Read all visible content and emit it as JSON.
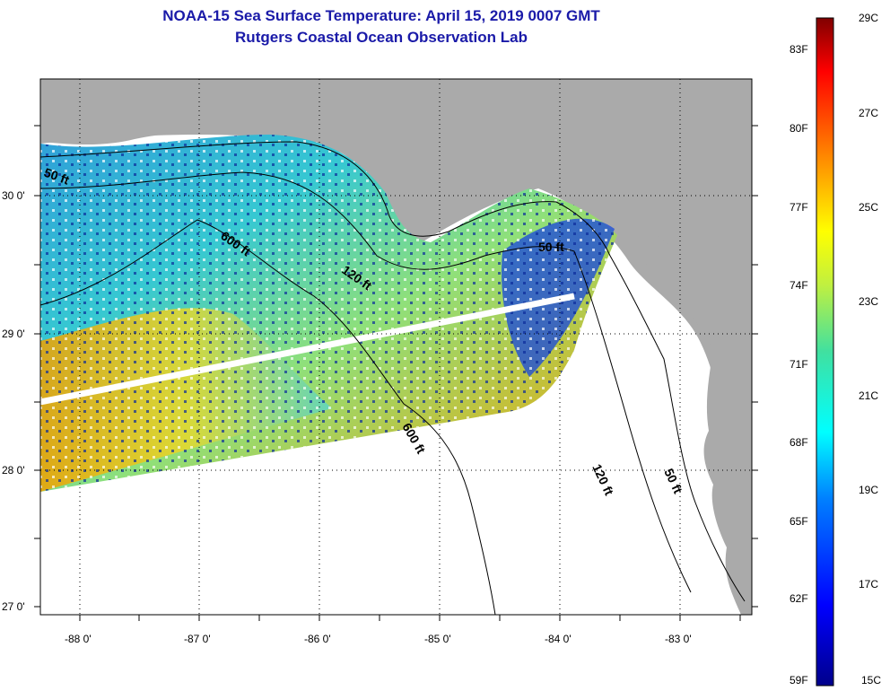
{
  "header": {
    "title_line1": "NOAA-15 Sea Surface Temperature:  April 15, 2019 0007 GMT",
    "title_line2": "Rutgers Coastal Ocean Observation Lab"
  },
  "map": {
    "lat_labels": [
      "30 0'",
      "29 0'",
      "28 0'",
      "27 0'"
    ],
    "lon_labels": [
      "-88 0'",
      "-87 0'",
      "-86 0'",
      "-85 0'",
      "-84 0'",
      "-83 0'"
    ],
    "contour_labels": [
      "50 ft",
      "600 ft",
      "120 ft",
      "50 ft",
      "600 ft",
      "120 ft",
      "50 ft"
    ],
    "colors": {
      "land": "#aaaaaa",
      "no_data": "#ffffff",
      "grid": "#000000"
    }
  },
  "colorbar": {
    "fahrenheit_labels": [
      "83F",
      "80F",
      "77F",
      "74F",
      "71F",
      "68F",
      "65F",
      "62F",
      "59F"
    ],
    "celsius_labels": [
      "29C",
      "27C",
      "25C",
      "23C",
      "21C",
      "19C",
      "17C",
      "15C"
    ],
    "range_c": [
      15,
      29
    ],
    "range_f": [
      59,
      84.2
    ]
  }
}
